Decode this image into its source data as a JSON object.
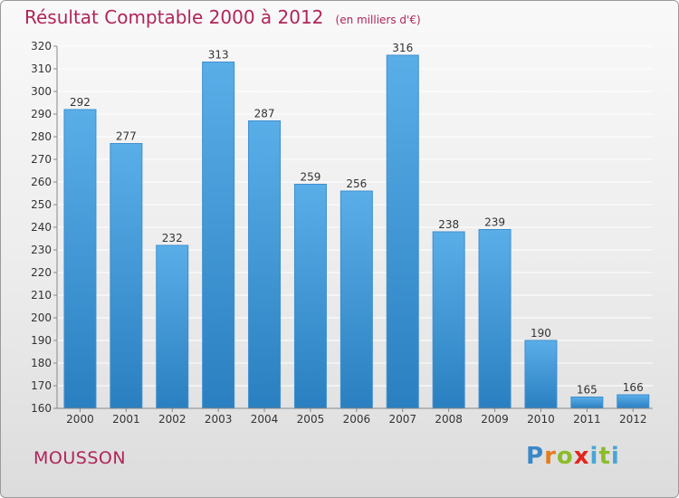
{
  "page": {
    "title": "Résultat Comptable 2000 à 2012",
    "subtitle": "(en milliers d'€)",
    "commune": "MOUSSON",
    "logo": {
      "letters": [
        "P",
        "r",
        "o",
        "x",
        "i",
        "t",
        "i"
      ],
      "text": "Proxiti"
    }
  },
  "colors": {
    "title": "#b0245a",
    "bar_top": "#5aaee8",
    "bar_bottom": "#2a7fc0",
    "bar_stroke": "#3d8fd0",
    "grid": "#ffffff",
    "axis": "#888888"
  },
  "chart_data": {
    "type": "bar",
    "title": "Résultat Comptable 2000 à 2012",
    "subtitle": "(en milliers d'€)",
    "xlabel": "",
    "ylabel": "",
    "categories": [
      "2000",
      "2001",
      "2002",
      "2003",
      "2004",
      "2005",
      "2006",
      "2007",
      "2008",
      "2009",
      "2010",
      "2011",
      "2012"
    ],
    "values": [
      292,
      277,
      232,
      313,
      287,
      259,
      256,
      316,
      238,
      239,
      190,
      165,
      166
    ],
    "data_labels": [
      "292",
      "277",
      "232",
      "313",
      "287",
      "259",
      "256",
      "316",
      "238",
      "239",
      "190",
      "165",
      "166"
    ],
    "ylim": [
      160,
      320
    ],
    "yticks": [
      160,
      170,
      180,
      190,
      200,
      210,
      220,
      230,
      240,
      250,
      260,
      270,
      280,
      290,
      300,
      310,
      320
    ],
    "ytick_labels": [
      "160",
      "170",
      "180",
      "190",
      "200",
      "210",
      "220",
      "230",
      "240",
      "250",
      "260",
      "270",
      "280",
      "290",
      "300",
      "310",
      "320"
    ],
    "grid": true,
    "legend": "none"
  }
}
